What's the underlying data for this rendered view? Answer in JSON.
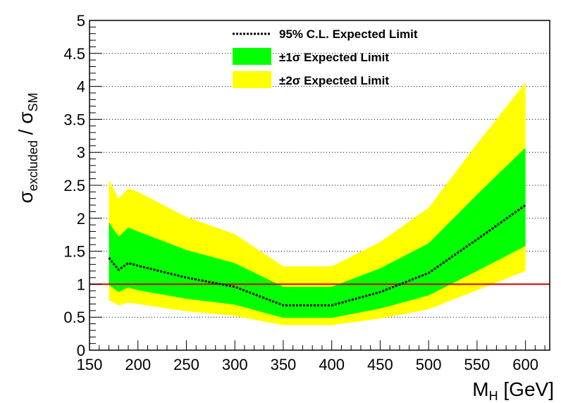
{
  "chart_data": {
    "type": "area",
    "xlim": [
      150,
      625
    ],
    "ylim": [
      0,
      5
    ],
    "x_ticks": [
      150,
      200,
      250,
      300,
      350,
      400,
      450,
      500,
      550,
      600
    ],
    "y_ticks": [
      0,
      0.5,
      1,
      1.5,
      2,
      2.5,
      3,
      3.5,
      4,
      4.5,
      5
    ],
    "grid": "horizontal-dotted",
    "legend_position": "top-center",
    "xlabel": {
      "main": "M",
      "sub": "H",
      "unit": " [GeV]"
    },
    "ylabel": {
      "sym1": "σ",
      "sub1": "excluded",
      "sep": " / ",
      "sym2": "σ",
      "sub2": "SM"
    },
    "x": [
      170,
      180,
      190,
      200,
      250,
      300,
      350,
      400,
      450,
      500,
      550,
      600
    ],
    "series": [
      {
        "name": "95% C.L. Expected Limit",
        "style": "dotted-line",
        "color": "#000000",
        "values": [
          1.4,
          1.22,
          1.32,
          1.28,
          1.1,
          0.96,
          0.68,
          0.68,
          0.88,
          1.17,
          1.68,
          2.2
        ]
      },
      {
        "name": "±1σ Expected Limit",
        "style": "band",
        "color": "#00ff00",
        "lower": [
          0.99,
          0.88,
          0.95,
          0.91,
          0.78,
          0.69,
          0.49,
          0.49,
          0.63,
          0.83,
          1.2,
          1.58
        ],
        "upper": [
          1.94,
          1.72,
          1.86,
          1.8,
          1.52,
          1.32,
          0.96,
          0.96,
          1.24,
          1.62,
          2.36,
          3.07
        ]
      },
      {
        "name": "±2σ Expected Limit",
        "style": "band",
        "color": "#ffff00",
        "lower": [
          0.76,
          0.68,
          0.72,
          0.7,
          0.59,
          0.52,
          0.38,
          0.38,
          0.48,
          0.62,
          0.91,
          1.2
        ],
        "upper": [
          2.58,
          2.3,
          2.45,
          2.4,
          2.02,
          1.76,
          1.27,
          1.27,
          1.64,
          2.16,
          3.13,
          4.06
        ]
      }
    ],
    "reference_line": {
      "y": 1,
      "color": "#cc0000"
    }
  }
}
